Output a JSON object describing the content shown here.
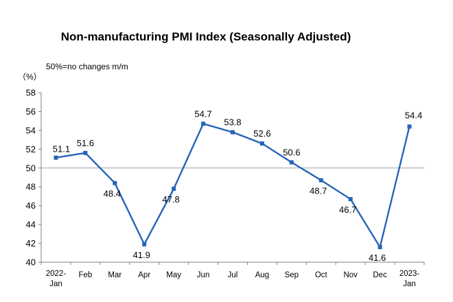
{
  "chart_data": {
    "type": "line",
    "title": "Non-manufacturing PMI Index (Seasonally Adjusted)",
    "unit_label": "（%）",
    "note": "50%=no changes m/m",
    "categories": [
      [
        "2022-",
        "Jan"
      ],
      [
        "Feb"
      ],
      [
        "Mar"
      ],
      [
        "Apr"
      ],
      [
        "May"
      ],
      [
        "Jun"
      ],
      [
        "Jul"
      ],
      [
        "Aug"
      ],
      [
        "Sep"
      ],
      [
        "Oct"
      ],
      [
        "Nov"
      ],
      [
        "Dec"
      ],
      [
        "2023-",
        "Jan"
      ]
    ],
    "values": [
      51.1,
      51.6,
      48.4,
      41.9,
      47.8,
      54.7,
      53.8,
      52.6,
      50.6,
      48.7,
      46.7,
      41.6,
      54.4
    ],
    "data_labels": [
      "51.1",
      "51.6",
      "48.4",
      "41.9",
      "47.8",
      "54.7",
      "53.8",
      "52.6",
      "50.6",
      "48.7",
      "46.7",
      "41.6",
      "54.4"
    ],
    "yticks": [
      40,
      42,
      44,
      46,
      48,
      50,
      52,
      54,
      56,
      58
    ],
    "ylim": [
      40,
      58
    ],
    "reference_line": 50,
    "line_color": "#2563b8",
    "reference_color": "#a0a0a0"
  }
}
